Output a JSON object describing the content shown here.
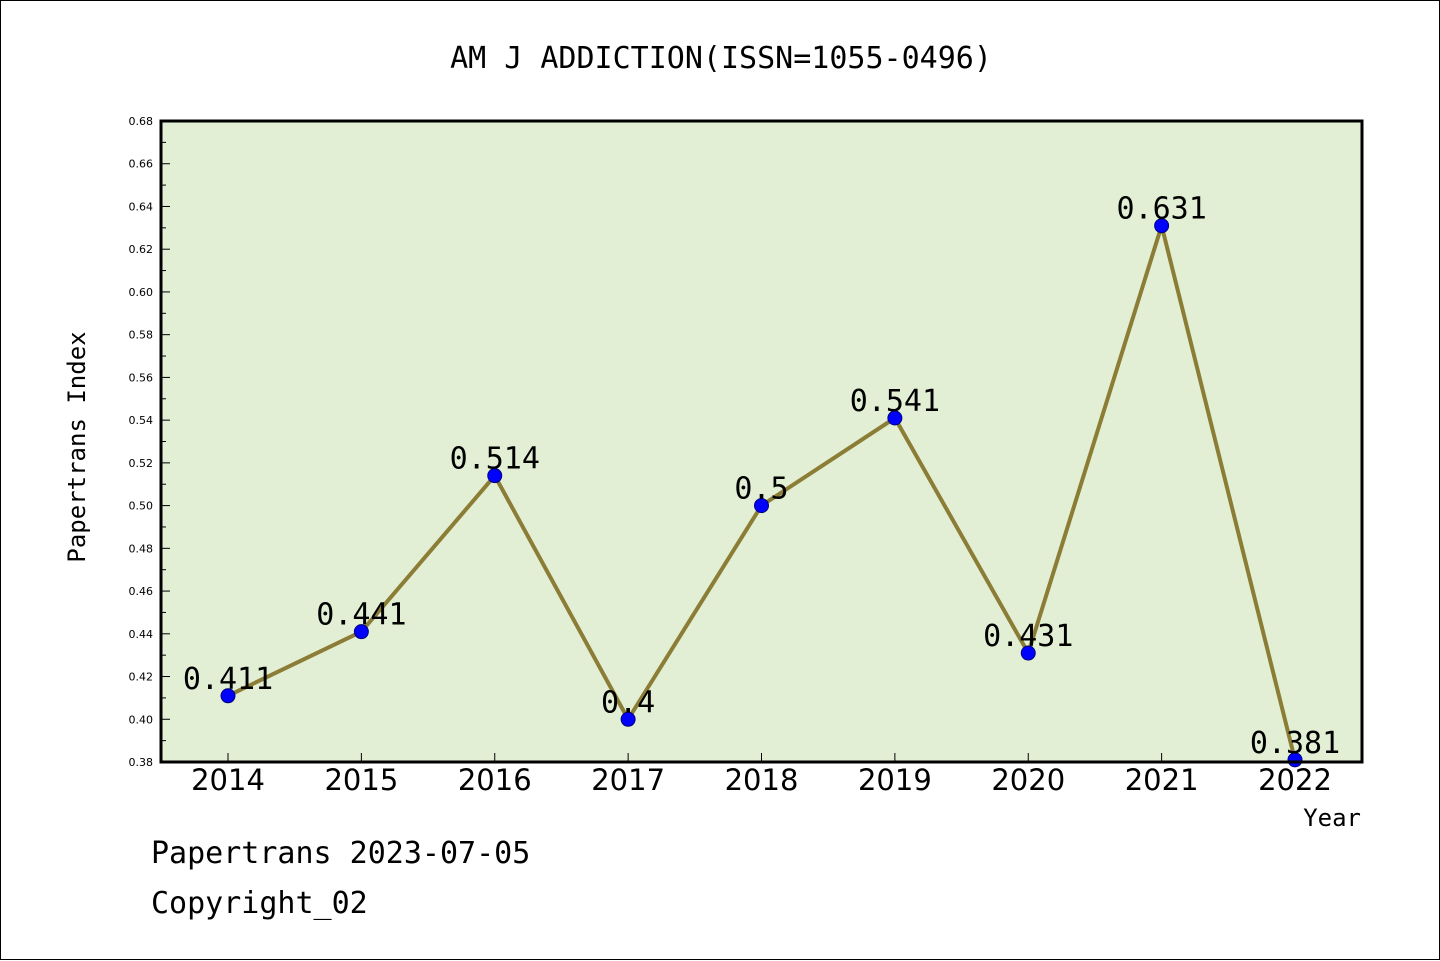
{
  "chart_data": {
    "type": "line",
    "title": "AM J ADDICTION(ISSN=1055-0496)",
    "xlabel": "Year",
    "ylabel": "Papertrans Index",
    "categories": [
      "2014",
      "2015",
      "2016",
      "2017",
      "2018",
      "2019",
      "2020",
      "2021",
      "2022"
    ],
    "series": [
      {
        "values": [
          0.411,
          0.441,
          0.514,
          0.4,
          0.5,
          0.541,
          0.431,
          0.631,
          0.381
        ]
      }
    ],
    "data_labels": [
      "0.411",
      "0.441",
      "0.514",
      "0.4",
      "0.5",
      "0.541",
      "0.431",
      "0.631",
      "0.381"
    ],
    "ylim": [
      0.38,
      0.68
    ],
    "yticks": [
      "0.38",
      "0.40",
      "0.42",
      "0.44",
      "0.46",
      "0.48",
      "0.50",
      "0.52",
      "0.54",
      "0.56",
      "0.58",
      "0.60",
      "0.62",
      "0.64",
      "0.66",
      "0.68"
    ],
    "grid": false,
    "legend": "none",
    "colors": {
      "plot_background": "#e2efd5",
      "line": "#8b7d35",
      "marker": "#0000ff"
    }
  },
  "footer": {
    "line1": "Papertrans 2023-07-05",
    "line2": "Copyright_02"
  }
}
